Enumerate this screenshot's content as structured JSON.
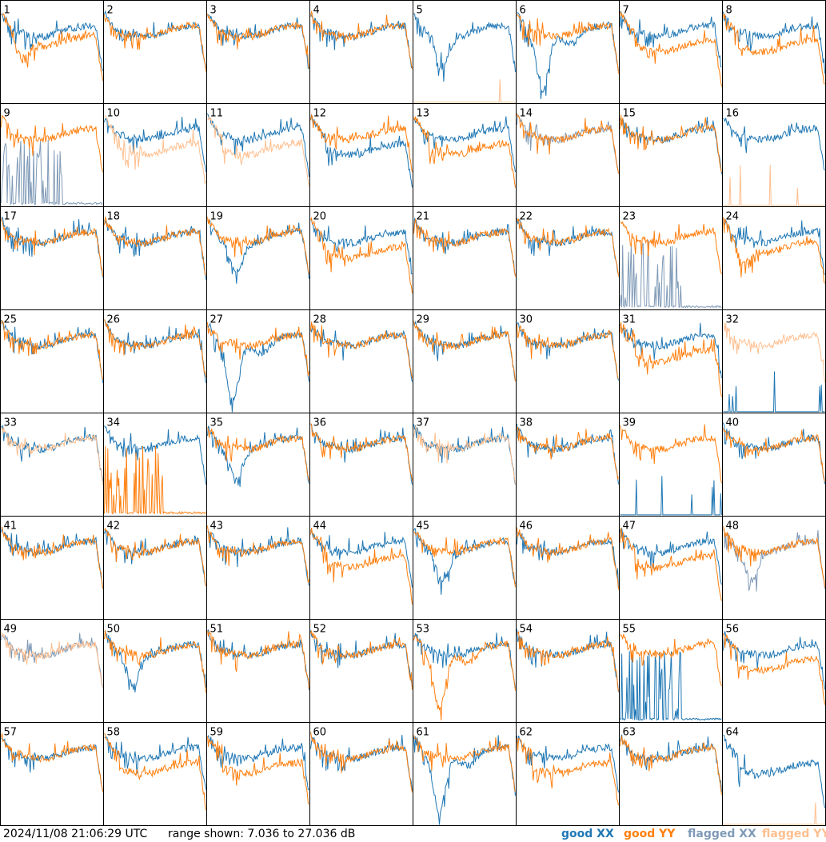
{
  "colors": {
    "good_xx": "#1f77b4",
    "good_yy": "#ff7f0e",
    "flagged_xx": "#7f9ab7",
    "flagged_yy": "#ffbf8f",
    "grid": "#000000"
  },
  "footer": {
    "timestamp": "2024/11/08 21:06:29 UTC",
    "range": "range shown: 7.036 to 27.036 dB",
    "legend": {
      "good_xx": [
        "good ",
        "XX"
      ],
      "good_yy": [
        "good ",
        "YY"
      ],
      "flagged_xx": [
        "flagged ",
        "XX"
      ],
      "flagged_yy": [
        "flagged ",
        "YY"
      ]
    }
  },
  "chart_data": {
    "type": "line",
    "layout": "8x8 small multiples",
    "ylim": [
      7.036,
      27.036
    ],
    "y_unit": "dB",
    "panels": [
      {
        "label": "1",
        "xx": "good",
        "yy": "good",
        "xx_shape": "normal",
        "yy_shape": "dipcut"
      },
      {
        "label": "2",
        "xx": "good",
        "yy": "good",
        "xx_shape": "normal",
        "yy_shape": "normal"
      },
      {
        "label": "3",
        "xx": "good",
        "yy": "good",
        "xx_shape": "normal",
        "yy_shape": "normal"
      },
      {
        "label": "4",
        "xx": "good",
        "yy": "good",
        "xx_shape": "normal",
        "yy_shape": "normal"
      },
      {
        "label": "5",
        "xx": "good",
        "yy": "flagged",
        "xx_shape": "dip",
        "yy_shape": "dead"
      },
      {
        "label": "6",
        "xx": "good",
        "yy": "good",
        "xx_shape": "deepdip",
        "yy_shape": "normal"
      },
      {
        "label": "7",
        "xx": "good",
        "yy": "good",
        "xx_shape": "normal",
        "yy_shape": "lowcut"
      },
      {
        "label": "8",
        "xx": "good",
        "yy": "good",
        "xx_shape": "normal",
        "yy_shape": "lowcut"
      },
      {
        "label": "9",
        "xx": "flagged",
        "yy": "good",
        "xx_shape": "spikes",
        "yy_shape": "normal"
      },
      {
        "label": "10",
        "xx": "good",
        "yy": "flagged",
        "xx_shape": "normal",
        "yy_shape": "lowcut"
      },
      {
        "label": "11",
        "xx": "good",
        "yy": "flagged",
        "xx_shape": "normal",
        "yy_shape": "lowcut"
      },
      {
        "label": "12",
        "xx": "good",
        "yy": "good",
        "xx_shape": "lowcut",
        "yy_shape": "normal"
      },
      {
        "label": "13",
        "xx": "good",
        "yy": "good",
        "xx_shape": "normal",
        "yy_shape": "lowcut"
      },
      {
        "label": "14",
        "xx": "flagged",
        "yy": "good",
        "xx_shape": "normal",
        "yy_shape": "normal"
      },
      {
        "label": "15",
        "xx": "good",
        "yy": "good",
        "xx_shape": "normal",
        "yy_shape": "normal"
      },
      {
        "label": "16",
        "xx": "good",
        "yy": "flagged",
        "xx_shape": "normal",
        "yy_shape": "dead"
      },
      {
        "label": "17",
        "xx": "good",
        "yy": "good",
        "xx_shape": "normal",
        "yy_shape": "normal"
      },
      {
        "label": "18",
        "xx": "good",
        "yy": "good",
        "xx_shape": "normal",
        "yy_shape": "normal"
      },
      {
        "label": "19",
        "xx": "good",
        "yy": "good",
        "xx_shape": "dip",
        "yy_shape": "normal"
      },
      {
        "label": "20",
        "xx": "good",
        "yy": "good",
        "xx_shape": "normal",
        "yy_shape": "lowcut"
      },
      {
        "label": "21",
        "xx": "good",
        "yy": "good",
        "xx_shape": "normal",
        "yy_shape": "normal"
      },
      {
        "label": "22",
        "xx": "good",
        "yy": "good",
        "xx_shape": "normal",
        "yy_shape": "normal"
      },
      {
        "label": "23",
        "xx": "flagged",
        "yy": "good",
        "xx_shape": "spikes",
        "yy_shape": "normal"
      },
      {
        "label": "24",
        "xx": "good",
        "yy": "good",
        "xx_shape": "normal",
        "yy_shape": "dipcut"
      },
      {
        "label": "25",
        "xx": "good",
        "yy": "good",
        "xx_shape": "normal",
        "yy_shape": "normal"
      },
      {
        "label": "26",
        "xx": "good",
        "yy": "good",
        "xx_shape": "normal",
        "yy_shape": "normal"
      },
      {
        "label": "27",
        "xx": "good",
        "yy": "good",
        "xx_shape": "deepdip",
        "yy_shape": "normal"
      },
      {
        "label": "28",
        "xx": "good",
        "yy": "good",
        "xx_shape": "normal",
        "yy_shape": "normal"
      },
      {
        "label": "29",
        "xx": "good",
        "yy": "good",
        "xx_shape": "normal",
        "yy_shape": "normal"
      },
      {
        "label": "30",
        "xx": "good",
        "yy": "good",
        "xx_shape": "normal",
        "yy_shape": "normal"
      },
      {
        "label": "31",
        "xx": "good",
        "yy": "good",
        "xx_shape": "normal",
        "yy_shape": "lowcut"
      },
      {
        "label": "32",
        "xx": "good",
        "yy": "flagged",
        "xx_shape": "dead",
        "yy_shape": "normal"
      },
      {
        "label": "33",
        "xx": "good",
        "yy": "flagged",
        "xx_shape": "normal",
        "yy_shape": "normal"
      },
      {
        "label": "34",
        "xx": "good",
        "yy": "good",
        "xx_shape": "normal",
        "yy_shape": "spikes"
      },
      {
        "label": "35",
        "xx": "good",
        "yy": "good",
        "xx_shape": "dip",
        "yy_shape": "normal"
      },
      {
        "label": "36",
        "xx": "good",
        "yy": "good",
        "xx_shape": "normal",
        "yy_shape": "normal"
      },
      {
        "label": "37",
        "xx": "good",
        "yy": "flagged",
        "xx_shape": "normal",
        "yy_shape": "normal"
      },
      {
        "label": "38",
        "xx": "good",
        "yy": "good",
        "xx_shape": "normal",
        "yy_shape": "normal"
      },
      {
        "label": "39",
        "xx": "good",
        "yy": "good",
        "xx_shape": "dead",
        "yy_shape": "normal"
      },
      {
        "label": "40",
        "xx": "good",
        "yy": "good",
        "xx_shape": "normal",
        "yy_shape": "normal"
      },
      {
        "label": "41",
        "xx": "good",
        "yy": "good",
        "xx_shape": "normal",
        "yy_shape": "normal"
      },
      {
        "label": "42",
        "xx": "good",
        "yy": "good",
        "xx_shape": "normal",
        "yy_shape": "normal"
      },
      {
        "label": "43",
        "xx": "good",
        "yy": "good",
        "xx_shape": "normal",
        "yy_shape": "normal"
      },
      {
        "label": "44",
        "xx": "good",
        "yy": "good",
        "xx_shape": "normal",
        "yy_shape": "lowcut"
      },
      {
        "label": "45",
        "xx": "good",
        "yy": "good",
        "xx_shape": "dip",
        "yy_shape": "normal"
      },
      {
        "label": "46",
        "xx": "good",
        "yy": "good",
        "xx_shape": "normal",
        "yy_shape": "normal"
      },
      {
        "label": "47",
        "xx": "good",
        "yy": "good",
        "xx_shape": "normal",
        "yy_shape": "lowcut"
      },
      {
        "label": "48",
        "xx": "flagged",
        "yy": "good",
        "xx_shape": "dip",
        "yy_shape": "normal"
      },
      {
        "label": "49",
        "xx": "flagged",
        "yy": "flagged",
        "xx_shape": "normal",
        "yy_shape": "normal"
      },
      {
        "label": "50",
        "xx": "good",
        "yy": "good",
        "xx_shape": "dip",
        "yy_shape": "normal"
      },
      {
        "label": "51",
        "xx": "good",
        "yy": "good",
        "xx_shape": "normal",
        "yy_shape": "normal"
      },
      {
        "label": "52",
        "xx": "good",
        "yy": "good",
        "xx_shape": "normal",
        "yy_shape": "normal"
      },
      {
        "label": "53",
        "xx": "good",
        "yy": "good",
        "xx_shape": "normal",
        "yy_shape": "deepdip"
      },
      {
        "label": "54",
        "xx": "good",
        "yy": "good",
        "xx_shape": "normal",
        "yy_shape": "normal"
      },
      {
        "label": "55",
        "xx": "good",
        "yy": "good",
        "xx_shape": "spikes",
        "yy_shape": "normal"
      },
      {
        "label": "56",
        "xx": "good",
        "yy": "good",
        "xx_shape": "normal",
        "yy_shape": "lowcut"
      },
      {
        "label": "57",
        "xx": "good",
        "yy": "good",
        "xx_shape": "normal",
        "yy_shape": "normal"
      },
      {
        "label": "58",
        "xx": "good",
        "yy": "good",
        "xx_shape": "normal",
        "yy_shape": "lowcut"
      },
      {
        "label": "59",
        "xx": "good",
        "yy": "good",
        "xx_shape": "normal",
        "yy_shape": "lowcut"
      },
      {
        "label": "60",
        "xx": "good",
        "yy": "good",
        "xx_shape": "normal",
        "yy_shape": "normal"
      },
      {
        "label": "61",
        "xx": "good",
        "yy": "good",
        "xx_shape": "deepdip",
        "yy_shape": "normal"
      },
      {
        "label": "62",
        "xx": "good",
        "yy": "good",
        "xx_shape": "normal",
        "yy_shape": "lowcut"
      },
      {
        "label": "63",
        "xx": "good",
        "yy": "good",
        "xx_shape": "normal",
        "yy_shape": "normal"
      },
      {
        "label": "64",
        "xx": "good",
        "yy": "flagged",
        "xx_shape": "lowcut",
        "yy_shape": "dead"
      }
    ]
  }
}
